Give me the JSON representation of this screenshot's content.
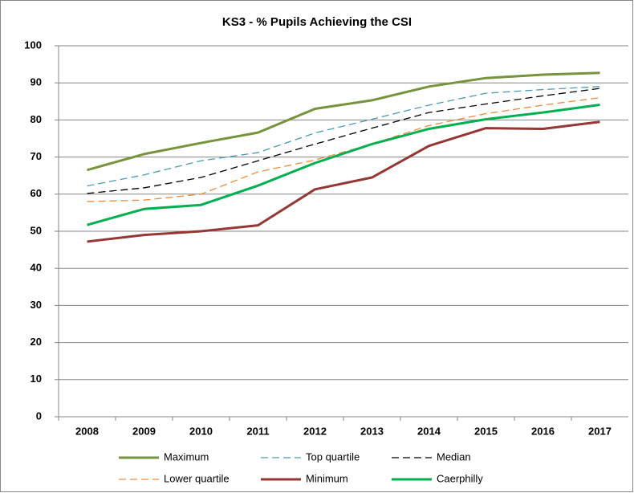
{
  "chart_data": {
    "type": "line",
    "title": "KS3 - % Pupils Achieving the CSI",
    "categories": [
      "2008",
      "2009",
      "2010",
      "2011",
      "2012",
      "2013",
      "2014",
      "2015",
      "2016",
      "2017"
    ],
    "series": [
      {
        "name": "Maximum",
        "color": "#77933c",
        "dash": false,
        "values": [
          66.5,
          70.8,
          73.8,
          76.6,
          83,
          85.3,
          89,
          91.3,
          92.2,
          92.7
        ]
      },
      {
        "name": "Top quartile",
        "color": "#4a9bb5",
        "dash": true,
        "values": [
          62.2,
          65.2,
          69,
          71.2,
          76.5,
          80.2,
          84,
          87.2,
          88.2,
          89
        ]
      },
      {
        "name": "Median",
        "color": "#000000",
        "dash": true,
        "values": [
          60.2,
          61.7,
          64.5,
          69,
          73.5,
          77.8,
          82,
          84.3,
          86.5,
          88.5
        ]
      },
      {
        "name": "Lower quartile",
        "color": "#f08a3c",
        "dash": true,
        "values": [
          58,
          58.4,
          60,
          66,
          69.2,
          73.5,
          78.5,
          81.7,
          84,
          86
        ]
      },
      {
        "name": "Minimum",
        "color": "#953735",
        "dash": false,
        "values": [
          47.2,
          49,
          50,
          51.6,
          61.3,
          64.5,
          73,
          77.8,
          77.6,
          79.5
        ]
      },
      {
        "name": "Caerphilly",
        "color": "#00b050",
        "dash": false,
        "values": [
          51.7,
          56,
          57.1,
          62.3,
          68.4,
          73.5,
          77.6,
          80.2,
          82,
          84.1
        ]
      }
    ],
    "ylim": [
      0,
      100
    ],
    "yticks": [
      0,
      10,
      20,
      30,
      40,
      50,
      60,
      70,
      80,
      90,
      100
    ],
    "grid": true,
    "legend": "bottom"
  }
}
